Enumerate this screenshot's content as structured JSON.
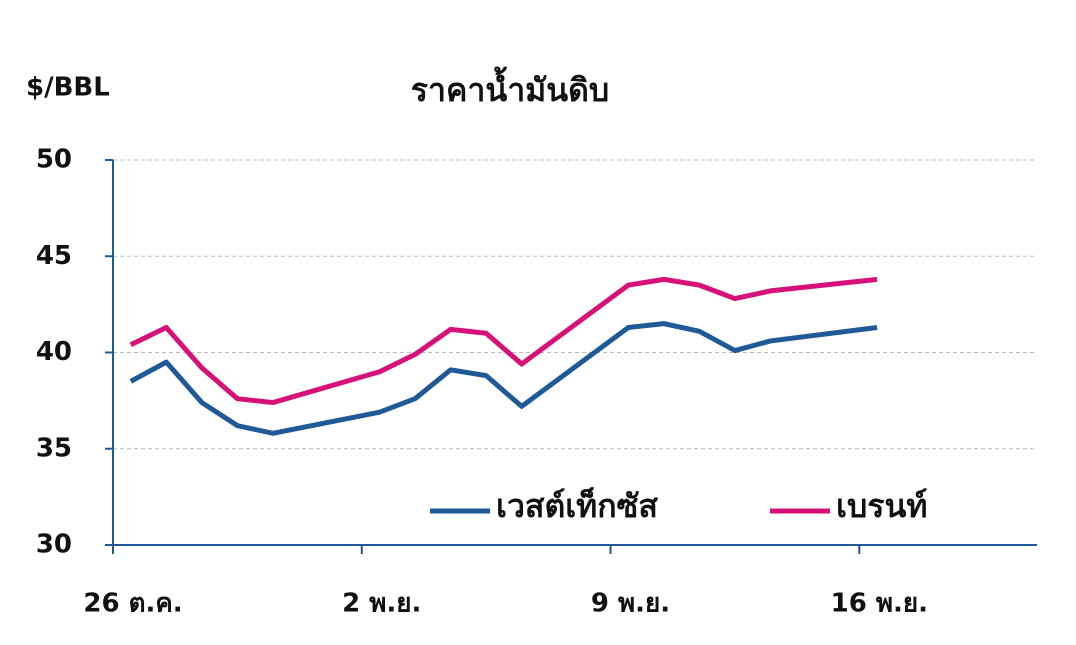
{
  "chart_data": {
    "type": "line",
    "title": "ราคาน้ำมันดิบ",
    "y_label": "$/BBL",
    "xlim": [
      0,
      26
    ],
    "xticks": [
      {
        "value": 0,
        "label": "26 ต.ค."
      },
      {
        "value": 7,
        "label": "2 พ.ย."
      },
      {
        "value": 14,
        "label": "9 พ.ย."
      },
      {
        "value": 21,
        "label": "16 พ.ย."
      }
    ],
    "x": [
      0.5,
      1.5,
      2.5,
      3.5,
      4.5,
      7.5,
      8.5,
      9.5,
      10.5,
      11.5,
      14.5,
      15.5,
      16.5,
      17.5,
      18.5,
      21.5
    ],
    "ylim": [
      30,
      50
    ],
    "yticks": [
      30,
      35,
      40,
      45,
      50
    ],
    "grid": true,
    "legend": "bottom",
    "series": [
      {
        "name": "เวสต์เท็กซัส",
        "color": "#1f5a96",
        "values": [
          38.5,
          39.5,
          37.4,
          36.2,
          35.8,
          36.9,
          37.6,
          39.1,
          38.8,
          37.2,
          41.3,
          41.5,
          41.1,
          40.1,
          40.6,
          41.3
        ]
      },
      {
        "name": "เบรนท์",
        "color": "#d6127a",
        "values": [
          40.4,
          41.3,
          39.2,
          37.6,
          37.4,
          39.0,
          39.9,
          41.2,
          41.0,
          39.4,
          43.5,
          43.8,
          43.5,
          42.8,
          43.2,
          43.8
        ]
      }
    ]
  }
}
